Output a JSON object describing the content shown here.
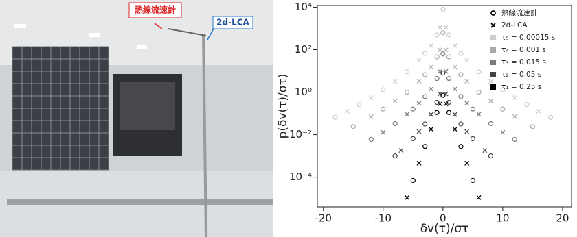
{
  "photo": {
    "label_hotwire": "熱線流速計",
    "label_lca": "2d-LCA"
  },
  "chart_data": {
    "type": "scatter",
    "xlabel": "δv(τ)/στ",
    "ylabel": "p(δv(τ)/στ)",
    "xlim": [
      -21,
      21.5
    ],
    "xticks": [
      -20,
      -10,
      0,
      10,
      20
    ],
    "ylim": [
      4e-06,
      12000
    ],
    "ylog": true,
    "yticks": [
      {
        "value": 0.0001,
        "label": "10⁻⁴"
      },
      {
        "value": 0.01,
        "label": "10⁻²"
      },
      {
        "value": 1,
        "label": "10⁰"
      },
      {
        "value": 100,
        "label": "10²"
      },
      {
        "value": 10000,
        "label": "10⁴"
      }
    ],
    "legend": "upper right",
    "markers": [
      {
        "name": "熱線流速計",
        "symbol": "circle"
      },
      {
        "name": "2d-LCA",
        "symbol": "cross"
      }
    ],
    "series": [
      {
        "name": "τ₅ = 0.00015 s",
        "color": "#cccccc",
        "groups": [
          {
            "x": [
              -18,
              -14,
              -10,
              -6,
              -3,
              -1,
              0,
              1,
              3,
              6,
              10,
              14,
              18
            ],
            "values": [
              0.065,
              0.26,
              1.3,
              9.1,
              66,
              501,
              7943,
              501,
              66,
              9.1,
              1.3,
              0.26,
              0.065
            ]
          },
          {
            "x": [
              -16,
              -12,
              -8,
              -4,
              -2,
              -0.5,
              0.5,
              2,
              4,
              8,
              12,
              16
            ],
            "values": [
              0.126,
              0.55,
              3.2,
              32,
              158,
              1120,
              1120,
              158,
              32,
              3.2,
              0.55,
              0.126
            ]
          }
        ]
      },
      {
        "name": "τ₄ = 0.001 s",
        "color": "#a8a8a8",
        "groups": [
          {
            "x": [
              -15,
              -10,
              -6,
              -3,
              -1,
              0,
              1,
              3,
              6,
              10,
              15
            ],
            "values": [
              0.024,
              0.16,
              1.0,
              6.7,
              46,
              631,
              46,
              6.7,
              1.0,
              0.16,
              0.024
            ]
          },
          {
            "x": [
              -12,
              -8,
              -4,
              -2,
              -0.5,
              0.5,
              2,
              4,
              8,
              12
            ],
            "values": [
              0.071,
              0.38,
              3.3,
              15,
              98,
              98,
              15,
              3.3,
              0.38,
              0.071
            ]
          }
        ]
      },
      {
        "name": "τ₃ = 0.015 s",
        "color": "#7a7a7a",
        "groups": [
          {
            "x": [
              -12,
              -8,
              -5,
              -3,
              -1,
              0,
              1,
              3,
              5,
              8,
              12
            ],
            "values": [
              0.006,
              0.033,
              0.16,
              0.62,
              4.4,
              63,
              4.4,
              0.62,
              0.16,
              0.033,
              0.006
            ]
          },
          {
            "x": [
              -10,
              -6,
              -4,
              -2,
              -0.5,
              0.5,
              2,
              4,
              6,
              10
            ],
            "values": [
              0.013,
              0.091,
              0.3,
              1.4,
              9.5,
              9.5,
              1.4,
              0.3,
              0.091,
              0.013
            ]
          }
        ]
      },
      {
        "name": "τ₂ = 0.05 s",
        "color": "#444444",
        "groups": [
          {
            "x": [
              -8,
              -5,
              -3,
              -1,
              0,
              1,
              3,
              5,
              8
            ],
            "values": [
              0.001,
              0.0065,
              0.032,
              0.33,
              7.9,
              0.33,
              0.032,
              0.0065,
              0.001
            ]
          },
          {
            "x": [
              -7,
              -4,
              -2,
              -0.5,
              0.5,
              2,
              4,
              7
            ],
            "values": [
              0.0018,
              0.014,
              0.089,
              0.83,
              0.83,
              0.089,
              0.014,
              0.0018
            ]
          }
        ]
      },
      {
        "name": "τ₁ = 0.25 s",
        "color": "#000000",
        "groups": [
          {
            "x": [
              -5,
              -3,
              -1,
              0,
              1,
              3,
              5
            ],
            "values": [
              7e-05,
              0.0028,
              0.11,
              0.71,
              0.11,
              0.0028,
              7e-05
            ]
          },
          {
            "x": [
              -6,
              -4,
              -2,
              -0.5,
              0.5,
              2,
              4,
              6
            ],
            "values": [
              1.1e-05,
              0.00045,
              0.018,
              0.28,
              0.28,
              0.018,
              0.00045,
              1.1e-05
            ]
          }
        ]
      }
    ]
  }
}
